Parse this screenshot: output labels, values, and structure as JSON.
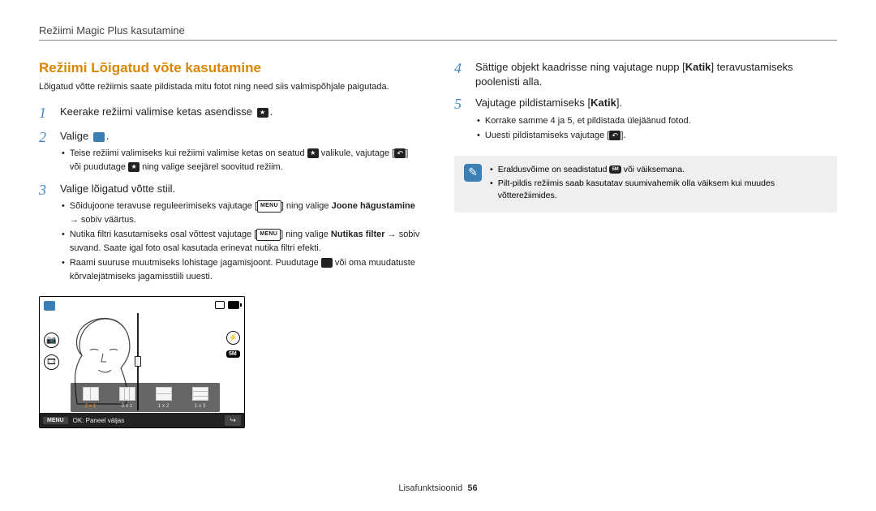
{
  "header": {
    "title": "Režiimi Magic Plus kasutamine"
  },
  "section": {
    "title": "Režiimi Lõigatud võte kasutamine",
    "intro": "Lõigatud võtte režiimis saate pildistada mitu fotot ning need siis valmispõhjale paigutada."
  },
  "steps_left": [
    {
      "num": "1",
      "text_parts": [
        "Keerake režiimi valimise ketas asendisse ",
        "."
      ],
      "icon_after_0": "magic",
      "bullets_html": []
    },
    {
      "num": "2",
      "text_parts": [
        "Valige ",
        "."
      ],
      "icon_after_0": "blue",
      "bullets_html": [
        {
          "pre": "Teise režiimi valimiseks kui režiimi valimise ketas on seatud ",
          "ic1": "magic",
          "mid": " valikule, vajutage [",
          "ic2": "back",
          "mid2": "] või puudutage ",
          "ic3": "magic",
          "post": " ning valige seejärel soovitud režiim."
        }
      ]
    },
    {
      "num": "3",
      "text_parts": [
        "Valige lõigatud võtte stiil."
      ],
      "bullets_html": [
        {
          "pre": "Sõidujoone teravuse reguleerimiseks vajutage [",
          "ic1": "menu",
          "mid": "] ning valige ",
          "bold1": "Joone hägustamine",
          "arrow": " → ",
          "post": "sobiv väärtus."
        },
        {
          "pre": "Nutika filtri kasutamiseks osal võttest vajutage [",
          "ic1": "menu",
          "mid": "] ning valige ",
          "bold1": "Nutikas filter",
          "arrow": " → ",
          "post": "sobiv suvand. Saate igal foto osal kasutada erinevat nutika filtri efekti."
        },
        {
          "pre": "Raami suuruse muutmiseks lohistage jagamisjoont. Puudutage ",
          "ic1": "fwd",
          "mid": " või oma muudatuste kõrvalejätmiseks jagamisstiili uuesti.",
          "post": ""
        }
      ]
    }
  ],
  "steps_right": [
    {
      "num": "4",
      "text_parts": [
        "Sättige objekt kaadrisse ning vajutage nupp [",
        "] teravustamiseks poolenisti alla."
      ],
      "bold_inside": "Katik"
    },
    {
      "num": "5",
      "text_parts": [
        "Vajutage pildistamiseks [",
        "]."
      ],
      "bold_inside": "Katik",
      "bullets_html": [
        {
          "pre": "Korrake samme 4 ja 5, et pildistada ülejäänud fotod."
        },
        {
          "pre": "Uuesti pildistamiseks vajutage [",
          "ic1": "back",
          "post": "]."
        }
      ]
    }
  ],
  "note": {
    "bullets": [
      {
        "pre": "Eraldusvõime on seadistatud ",
        "chip": "5M",
        "post": " või väiksemana."
      },
      {
        "pre": "Pilt-pildis režiimis saab kasutatav suumivahemik olla väiksem kui muudes võtterežiimides."
      }
    ]
  },
  "camera": {
    "panel": [
      {
        "label": "2 x 1",
        "cols": 2,
        "rows": 1,
        "active": true
      },
      {
        "label": "3 x 1",
        "cols": 3,
        "rows": 1
      },
      {
        "label": "1 x 2",
        "cols": 1,
        "rows": 2
      },
      {
        "label": "1 x 3",
        "cols": 1,
        "rows": 3
      }
    ],
    "menu_label": "MENU",
    "ok_label": "OK: Paneel väljas",
    "res_chip": "5M"
  },
  "footer": {
    "text": "Lisafunktsioonid",
    "page": "56"
  }
}
